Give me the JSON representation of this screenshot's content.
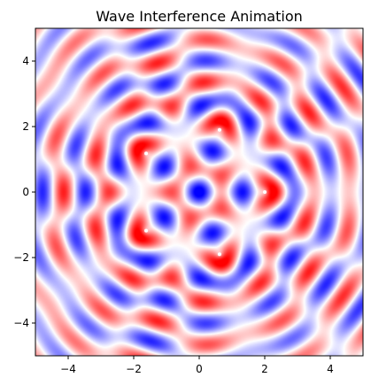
{
  "chart_data": {
    "type": "heatmap",
    "title": "Wave Interference Animation",
    "xlabel": "",
    "ylabel": "",
    "xlim": [
      -5,
      5
    ],
    "ylim": [
      -5,
      5
    ],
    "xticks": [
      -4,
      -2,
      0,
      2,
      4
    ],
    "yticks": [
      -4,
      -2,
      0,
      2,
      4
    ],
    "xtick_labels": [
      "−4",
      "−2",
      "0",
      "2",
      "4"
    ],
    "ytick_labels": [
      "−4",
      "−2",
      "0",
      "2",
      "4"
    ],
    "colormap": "bwr",
    "grid": false,
    "sources": [
      {
        "x": 2.0,
        "y": 0.0
      },
      {
        "x": 0.62,
        "y": 1.9
      },
      {
        "x": -1.62,
        "y": 1.18
      },
      {
        "x": -1.62,
        "y": -1.18
      },
      {
        "x": 0.62,
        "y": -1.9
      }
    ],
    "colors": {
      "positive": "#ff0000",
      "negative": "#0000ff",
      "zero": "#ffffff",
      "source_marker": "#ffffff"
    }
  }
}
